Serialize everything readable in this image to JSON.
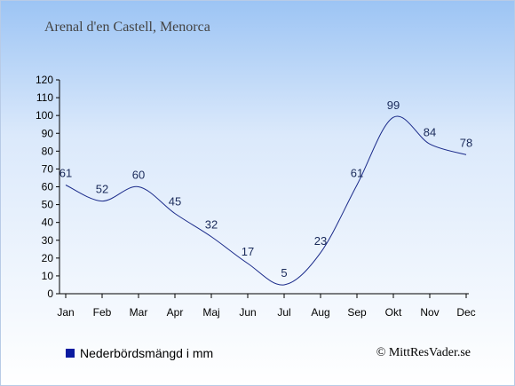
{
  "header": {
    "title": "Arenal d'en Castell, Menorca"
  },
  "legend": {
    "label": "Nederbördsmängd i mm",
    "color": "#0a1aa0"
  },
  "footer": {
    "copyright": "© MittResVader.se"
  },
  "chart_data": {
    "type": "line",
    "title": "Arenal d'en Castell, Menorca",
    "xlabel": "",
    "ylabel": "",
    "categories": [
      "Jan",
      "Feb",
      "Mar",
      "Apr",
      "Maj",
      "Jun",
      "Jul",
      "Aug",
      "Sep",
      "Okt",
      "Nov",
      "Dec"
    ],
    "series": [
      {
        "name": "Nederbördsmängd i mm",
        "values": [
          61,
          52,
          60,
          45,
          32,
          17,
          5,
          23,
          61,
          99,
          84,
          78
        ],
        "color": "#1a2a8a"
      }
    ],
    "ylim": [
      0,
      120
    ],
    "yticks": [
      0,
      10,
      20,
      30,
      40,
      50,
      60,
      70,
      80,
      90,
      100,
      110,
      120
    ],
    "grid": false,
    "legend_position": "bottom-left",
    "data_labels": true
  }
}
